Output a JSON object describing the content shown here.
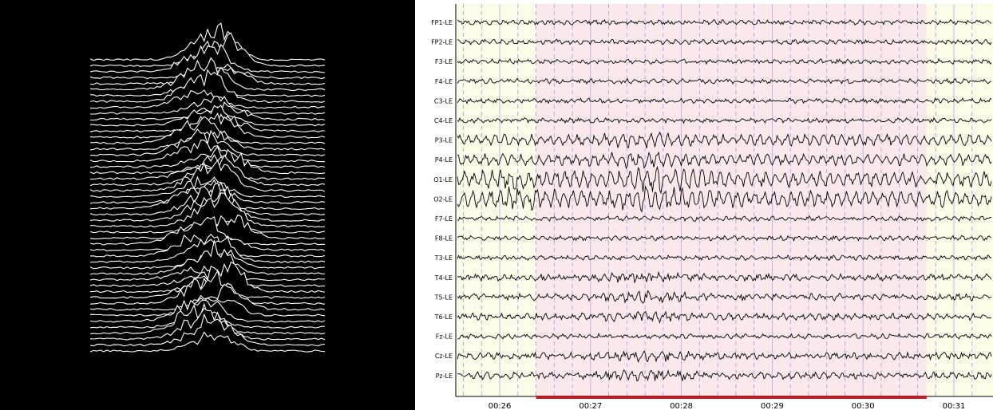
{
  "chart_data": [
    {
      "type": "line",
      "title": "",
      "series_count": 50,
      "background": "#000000",
      "line_color": "#ffffff",
      "style": "stacked ridgeline plot"
    },
    {
      "type": "line",
      "title": "",
      "style": "multichannel EEG trace",
      "channels": [
        "FP1-LE",
        "FP2-LE",
        "F3-LE",
        "F4-LE",
        "C3-LE",
        "C4-LE",
        "P3-LE",
        "P4-LE",
        "O1-LE",
        "O2-LE",
        "F7-LE",
        "F8-LE",
        "T3-LE",
        "T4-LE",
        "T5-LE",
        "T6-LE",
        "Fz-LE",
        "Cz-LE",
        "Pz-LE"
      ],
      "x_ticks": [
        "00:26",
        "00:27",
        "00:28",
        "00:29",
        "00:30",
        "00:31"
      ],
      "highlight_region": {
        "start": "00:26.4",
        "end": "00:30.7"
      },
      "grid": true,
      "colors": {
        "trace": "#000000",
        "background": "#fbfbe8",
        "highlight": "#fbe8ea",
        "grid_solid": "#aaaaf0",
        "grid_dashed": "#9a9aee",
        "marker_bar": "#b52020"
      }
    }
  ]
}
